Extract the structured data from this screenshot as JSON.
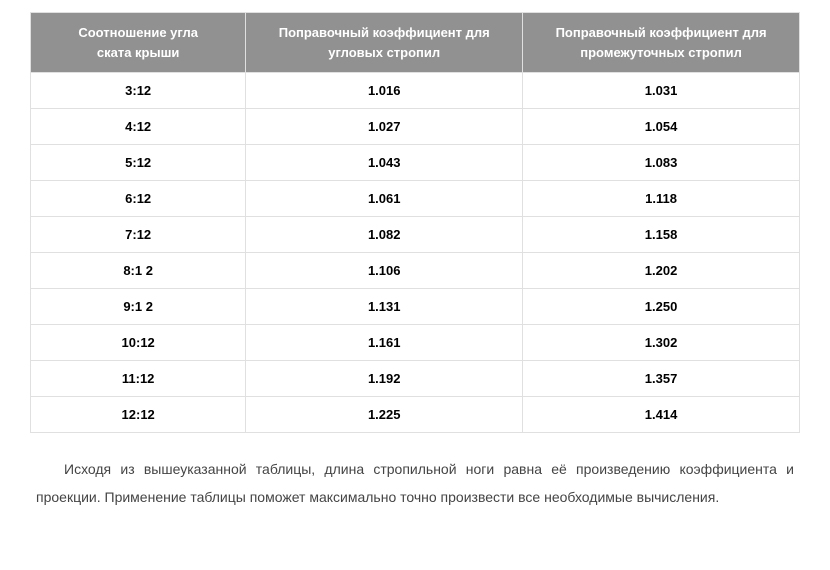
{
  "table": {
    "type": "table",
    "header_background": "#919191",
    "header_text_color": "#ffffff",
    "cell_background": "#ffffff",
    "cell_text_color": "#000000",
    "border_color": "#e0e0e0",
    "font_family": "Arial",
    "header_fontsize": 13,
    "cell_fontsize": 13,
    "columns": [
      {
        "label_line1": "Соотношение угла",
        "label_line2": "ската крыши",
        "width_pct": 28
      },
      {
        "label_line1": "Поправочный коэффициент для",
        "label_line2": "угловых стропил",
        "width_pct": 36
      },
      {
        "label_line1": "Поправочный коэффициент для",
        "label_line2": "промежуточных стропил",
        "width_pct": 36
      }
    ],
    "rows": [
      [
        "3:12",
        "1.016",
        "1.031"
      ],
      [
        "4:12",
        "1.027",
        "1.054"
      ],
      [
        "5:12",
        "1.043",
        "1.083"
      ],
      [
        "6:12",
        "1.061",
        "1.118"
      ],
      [
        "7:12",
        "1.082",
        "1.158"
      ],
      [
        "8:1 2",
        "1.106",
        "1.202"
      ],
      [
        "9:1 2",
        "1.131",
        "1.250"
      ],
      [
        "10:12",
        "1.161",
        "1.302"
      ],
      [
        "11:12",
        "1.192",
        "1.357"
      ],
      [
        "12:12",
        "1.225",
        "1.414"
      ]
    ]
  },
  "paragraph": {
    "text": "Исходя из вышеуказанной таблицы, длина стропильной ноги равна её произведению коэффициента и проекции. Применение таблицы поможет максимально точно произвести все необходимые вычисления.",
    "fontsize": 14,
    "line_height": 2.0,
    "text_color": "#444444"
  }
}
